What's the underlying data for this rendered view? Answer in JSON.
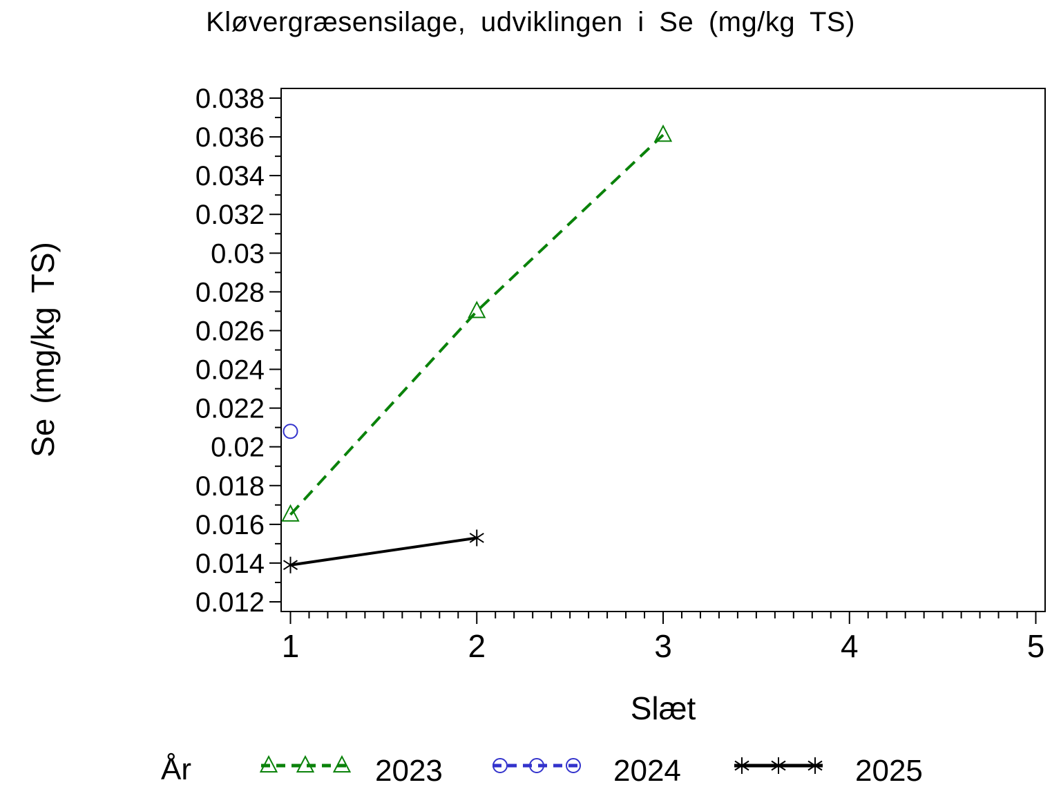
{
  "chart_data": {
    "type": "line",
    "title": "Kløvergræsensilage, udviklingen i Se (mg/kg TS)",
    "xlabel": "Slæt",
    "ylabel": "Se (mg/kg TS)",
    "legend_title": "År",
    "legend_position": "bottom",
    "grid": false,
    "xlim": [
      0.95,
      5.05
    ],
    "ylim": [
      0.0115,
      0.0385
    ],
    "x_ticks": {
      "major_values": [
        1,
        2,
        3,
        4,
        5
      ],
      "major_labels": [
        "1",
        "2",
        "3",
        "4",
        "5"
      ],
      "minor_step": 0.1
    },
    "y_ticks": {
      "major_values": [
        0.012,
        0.014,
        0.016,
        0.018,
        0.02,
        0.022,
        0.024,
        0.026,
        0.028,
        0.03,
        0.032,
        0.034,
        0.036,
        0.038
      ],
      "major_labels": [
        "0.012",
        "0.014",
        "0.016",
        "0.018",
        "0.02",
        "0.022",
        "0.024",
        "0.026",
        "0.028",
        "0.03",
        "0.032",
        "0.034",
        "0.036",
        "0.038"
      ],
      "minor_step": 0.001
    },
    "series": [
      {
        "name": "2023",
        "color": "#0a820a",
        "line": "dashed",
        "marker": "triangle",
        "x": [
          1,
          2,
          3
        ],
        "y": [
          0.0165,
          0.027,
          0.0361
        ]
      },
      {
        "name": "2024",
        "color": "#3333cc",
        "line": "dashed",
        "marker": "circle",
        "x": [
          1
        ],
        "y": [
          0.0208
        ]
      },
      {
        "name": "2025",
        "color": "#000000",
        "line": "solid",
        "marker": "asterisk",
        "x": [
          1,
          2
        ],
        "y": [
          0.0139,
          0.0153
        ]
      }
    ]
  }
}
